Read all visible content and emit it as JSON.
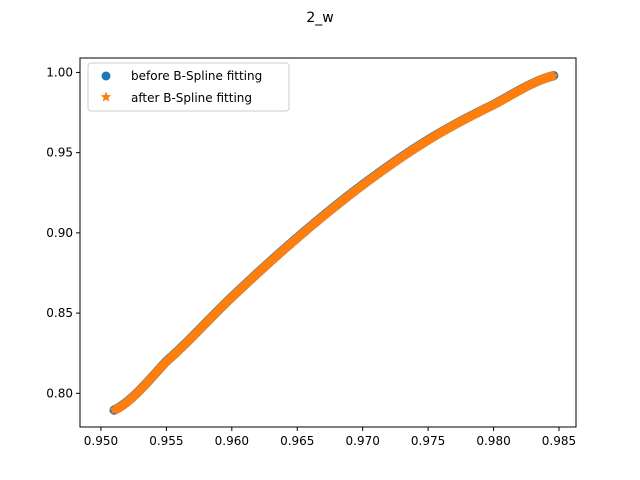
{
  "chart_data": {
    "type": "scatter",
    "title": "2_w",
    "xlabel": "",
    "ylabel": "",
    "xlim": [
      0.9484,
      0.9863
    ],
    "ylim": [
      0.779,
      1.009
    ],
    "xticks": [
      0.95,
      0.955,
      0.96,
      0.965,
      0.97,
      0.975,
      0.98,
      0.985
    ],
    "xtick_labels": [
      "0.950",
      "0.955",
      "0.960",
      "0.965",
      "0.970",
      "0.975",
      "0.980",
      "0.985"
    ],
    "yticks": [
      0.8,
      0.85,
      0.9,
      0.95,
      1.0
    ],
    "ytick_labels": [
      "0.80",
      "0.85",
      "0.90",
      "0.95",
      "1.00"
    ],
    "grid": false,
    "legend_position": "upper-left",
    "series": [
      {
        "name": "before B-Spline fitting",
        "marker": "circle",
        "color": "#1f77b4",
        "x_range": [
          0.951,
          0.9846
        ],
        "y_range": [
          0.7895,
          0.998
        ],
        "control_points": [
          {
            "x": 0.951,
            "y": 0.7895
          },
          {
            "x": 0.955,
            "y": 0.82
          },
          {
            "x": 0.96,
            "y": 0.86
          },
          {
            "x": 0.965,
            "y": 0.897
          },
          {
            "x": 0.97,
            "y": 0.93
          },
          {
            "x": 0.975,
            "y": 0.958
          },
          {
            "x": 0.98,
            "y": 0.98
          },
          {
            "x": 0.9846,
            "y": 0.998
          }
        ]
      },
      {
        "name": "after B-Spline fitting",
        "marker": "star",
        "color": "#ff7f0e",
        "x_range": [
          0.951,
          0.9846
        ],
        "y_range": [
          0.7895,
          0.998
        ],
        "control_points": [
          {
            "x": 0.951,
            "y": 0.7895
          },
          {
            "x": 0.955,
            "y": 0.82
          },
          {
            "x": 0.96,
            "y": 0.86
          },
          {
            "x": 0.965,
            "y": 0.897
          },
          {
            "x": 0.97,
            "y": 0.93
          },
          {
            "x": 0.975,
            "y": 0.958
          },
          {
            "x": 0.98,
            "y": 0.98
          },
          {
            "x": 0.9846,
            "y": 0.998
          }
        ]
      }
    ]
  }
}
